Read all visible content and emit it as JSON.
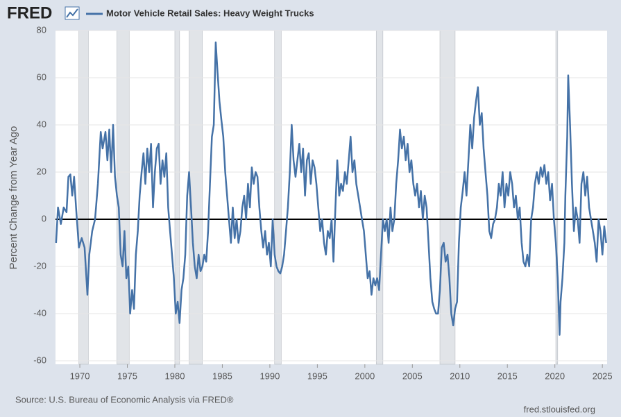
{
  "logo": "FRED",
  "chart_data": {
    "type": "line",
    "y_label": "Percent Change from Year Ago",
    "source": "Source: U.S. Bureau of Economic Analysis via FRED®",
    "site": "fred.stlouisfed.org",
    "grid": true,
    "xlim": [
      1967.44,
      2025.5
    ],
    "xticks": [
      1970,
      1975,
      1980,
      1985,
      1990,
      1995,
      2000,
      2005,
      2010,
      2015,
      2020,
      2025
    ],
    "ylim": [
      -60,
      80
    ],
    "yticks": [
      -60,
      -40,
      -20,
      0,
      20,
      40,
      60,
      80
    ],
    "recessions": [
      [
        1969.9,
        1970.9
      ],
      [
        1973.9,
        1975.2
      ],
      [
        1980.0,
        1980.5
      ],
      [
        1981.5,
        1982.9
      ],
      [
        1990.5,
        1991.2
      ],
      [
        2001.2,
        2001.9
      ],
      [
        2007.9,
        2009.5
      ],
      [
        2020.1,
        2020.3
      ]
    ],
    "x": [
      1967.5,
      1967.7,
      1968,
      1968.3,
      1968.6,
      1968.8,
      1969,
      1969.2,
      1969.4,
      1969.6,
      1969.9,
      1970.2,
      1970.5,
      1970.8,
      1971,
      1971.3,
      1971.6,
      1971.9,
      1972.2,
      1972.4,
      1972.7,
      1972.9,
      1973.1,
      1973.3,
      1973.5,
      1973.7,
      1973.9,
      1974.1,
      1974.3,
      1974.5,
      1974.7,
      1974.9,
      1975.1,
      1975.3,
      1975.5,
      1975.7,
      1975.9,
      1976.1,
      1976.3,
      1976.5,
      1976.7,
      1976.9,
      1977.1,
      1977.3,
      1977.5,
      1977.7,
      1977.9,
      1978.1,
      1978.3,
      1978.5,
      1978.7,
      1978.9,
      1979.1,
      1979.3,
      1979.5,
      1979.7,
      1979.9,
      1980.1,
      1980.3,
      1980.5,
      1980.7,
      1980.9,
      1981.1,
      1981.3,
      1981.5,
      1981.7,
      1981.9,
      1982.1,
      1982.3,
      1982.5,
      1982.7,
      1982.9,
      1983.1,
      1983.3,
      1983.5,
      1983.7,
      1983.9,
      1984.1,
      1984.3,
      1984.5,
      1984.7,
      1984.9,
      1985.1,
      1985.3,
      1985.5,
      1985.7,
      1985.9,
      1986.1,
      1986.3,
      1986.5,
      1986.7,
      1986.9,
      1987.1,
      1987.3,
      1987.5,
      1987.7,
      1987.9,
      1988.1,
      1988.3,
      1988.5,
      1988.7,
      1988.9,
      1989.1,
      1989.3,
      1989.5,
      1989.7,
      1989.9,
      1990.1,
      1990.3,
      1990.5,
      1990.7,
      1990.9,
      1991.1,
      1991.3,
      1991.5,
      1991.7,
      1991.9,
      1992.1,
      1992.3,
      1992.5,
      1992.7,
      1992.9,
      1993.1,
      1993.3,
      1993.5,
      1993.7,
      1993.9,
      1994.1,
      1994.3,
      1994.5,
      1994.7,
      1994.9,
      1995.1,
      1995.3,
      1995.5,
      1995.7,
      1995.9,
      1996.1,
      1996.3,
      1996.5,
      1996.7,
      1996.9,
      1997.1,
      1997.3,
      1997.5,
      1997.7,
      1997.9,
      1998.1,
      1998.3,
      1998.5,
      1998.7,
      1998.9,
      1999.1,
      1999.3,
      1999.5,
      1999.7,
      1999.9,
      2000.1,
      2000.3,
      2000.5,
      2000.7,
      2000.9,
      2001.1,
      2001.3,
      2001.5,
      2001.7,
      2001.9,
      2002.1,
      2002.3,
      2002.5,
      2002.7,
      2002.9,
      2003.1,
      2003.3,
      2003.5,
      2003.7,
      2003.9,
      2004.1,
      2004.3,
      2004.5,
      2004.7,
      2004.9,
      2005.1,
      2005.3,
      2005.5,
      2005.7,
      2005.9,
      2006.1,
      2006.3,
      2006.5,
      2006.7,
      2006.9,
      2007.1,
      2007.3,
      2007.5,
      2007.7,
      2007.9,
      2008.1,
      2008.3,
      2008.5,
      2008.7,
      2008.9,
      2009.1,
      2009.3,
      2009.5,
      2009.7,
      2009.9,
      2010.1,
      2010.3,
      2010.5,
      2010.7,
      2010.9,
      2011.1,
      2011.3,
      2011.5,
      2011.7,
      2011.9,
      2012.1,
      2012.3,
      2012.5,
      2012.7,
      2012.9,
      2013.1,
      2013.3,
      2013.5,
      2013.7,
      2013.9,
      2014.1,
      2014.3,
      2014.5,
      2014.7,
      2014.9,
      2015.1,
      2015.3,
      2015.5,
      2015.7,
      2015.9,
      2016.1,
      2016.3,
      2016.5,
      2016.7,
      2016.9,
      2017.1,
      2017.3,
      2017.5,
      2017.7,
      2017.9,
      2018.1,
      2018.3,
      2018.5,
      2018.7,
      2018.9,
      2019.1,
      2019.3,
      2019.5,
      2019.7,
      2019.9,
      2020.1,
      2020.3,
      2020.5,
      2020.6,
      2020.8,
      2021,
      2021.1,
      2021.3,
      2021.4,
      2021.6,
      2021.8,
      2022,
      2022.2,
      2022.4,
      2022.6,
      2022.8,
      2023,
      2023.2,
      2023.4,
      2023.6,
      2023.8,
      2024,
      2024.2,
      2024.4,
      2024.6,
      2024.8,
      2025,
      2025.2,
      2025.4
    ],
    "series": [
      {
        "name": "Motor Vehicle Retail Sales: Heavy Weight Trucks",
        "color": "#4572a7",
        "values": [
          -10,
          5,
          -2,
          5,
          3,
          18,
          19,
          10,
          18,
          5,
          -12,
          -8,
          -12,
          -32,
          -15,
          -5,
          0,
          15,
          37,
          30,
          37,
          25,
          38,
          20,
          40,
          18,
          10,
          5,
          -15,
          -20,
          -5,
          -25,
          -20,
          -40,
          -30,
          -38,
          -15,
          -5,
          10,
          20,
          28,
          15,
          30,
          20,
          32,
          5,
          20,
          30,
          32,
          15,
          25,
          18,
          28,
          5,
          -5,
          -15,
          -25,
          -40,
          -35,
          -44,
          -30,
          -25,
          -15,
          10,
          20,
          5,
          -10,
          -20,
          -25,
          -15,
          -22,
          -20,
          -15,
          -18,
          -5,
          15,
          35,
          40,
          75,
          62,
          50,
          42,
          35,
          20,
          10,
          0,
          -10,
          5,
          -8,
          0,
          -10,
          -5,
          5,
          10,
          0,
          15,
          5,
          22,
          15,
          20,
          18,
          5,
          -5,
          -12,
          -5,
          -15,
          -10,
          -20,
          0,
          -15,
          -20,
          -22,
          -23,
          -20,
          -15,
          -5,
          5,
          20,
          40,
          25,
          18,
          25,
          32,
          20,
          30,
          10,
          25,
          28,
          15,
          25,
          22,
          15,
          5,
          -5,
          0,
          -10,
          -15,
          -5,
          -8,
          0,
          -18,
          5,
          25,
          10,
          15,
          12,
          20,
          15,
          25,
          35,
          20,
          25,
          15,
          10,
          5,
          0,
          -5,
          -15,
          -25,
          -22,
          -32,
          -25,
          -28,
          -25,
          -30,
          -15,
          0,
          -5,
          0,
          -10,
          5,
          -5,
          0,
          15,
          25,
          38,
          30,
          35,
          25,
          32,
          20,
          25,
          15,
          10,
          15,
          5,
          12,
          0,
          10,
          5,
          -10,
          -25,
          -35,
          -38,
          -40,
          -40,
          -30,
          -12,
          -10,
          -18,
          -15,
          -25,
          -40,
          -45,
          -38,
          -35,
          -10,
          5,
          12,
          20,
          10,
          25,
          40,
          30,
          43,
          50,
          56,
          40,
          45,
          30,
          20,
          10,
          -5,
          -8,
          -2,
          0,
          5,
          15,
          10,
          20,
          5,
          15,
          10,
          20,
          15,
          5,
          10,
          0,
          5,
          -10,
          -18,
          -20,
          -15,
          -20,
          0,
          5,
          15,
          20,
          15,
          22,
          18,
          23,
          15,
          20,
          8,
          15,
          0,
          -10,
          -25,
          -49,
          -35,
          -25,
          -10,
          10,
          35,
          61,
          40,
          15,
          -5,
          5,
          0,
          -10,
          15,
          20,
          10,
          18,
          5,
          0,
          -5,
          -10,
          -18,
          0,
          -5,
          -15,
          -3,
          -10
        ]
      }
    ]
  }
}
